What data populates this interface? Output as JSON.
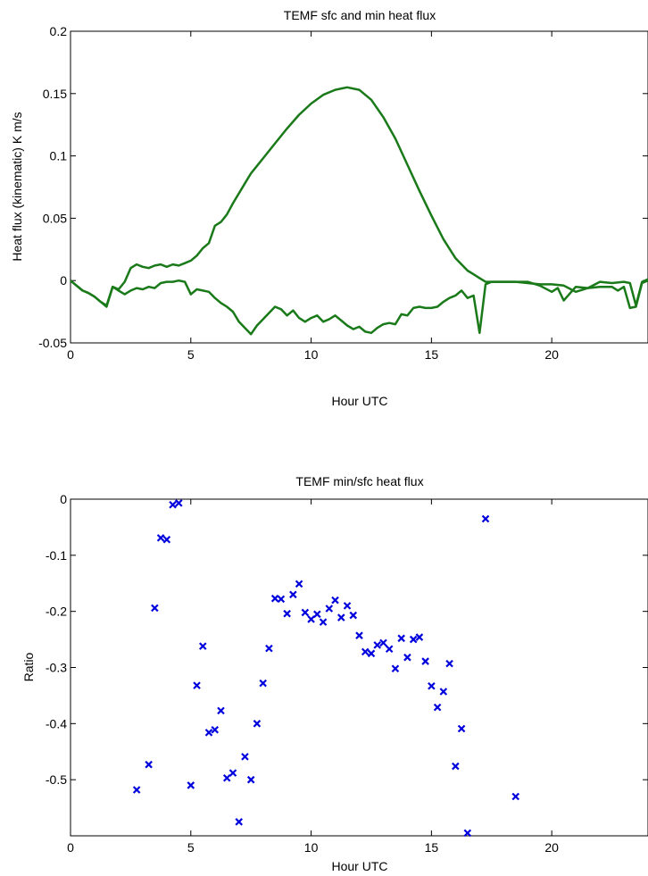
{
  "chart_data": [
    {
      "type": "line",
      "title": "TEMF sfc and min heat flux",
      "xlabel": "Hour UTC",
      "ylabel": "Heat flux (kinematic) K m/s",
      "xlim": [
        0,
        24
      ],
      "ylim": [
        -0.05,
        0.2
      ],
      "xticks": [
        0,
        5,
        10,
        15,
        20
      ],
      "yticks": [
        -0.05,
        0,
        0.05,
        0.1,
        0.15,
        0.2
      ],
      "grid": false,
      "colors": {
        "line": "#1a7a1a"
      },
      "series": [
        {
          "x": [
            0,
            0.25,
            0.5,
            0.75,
            1.0,
            1.25,
            1.5,
            1.75,
            2.0,
            2.25,
            2.5,
            2.75,
            3.0,
            3.25,
            3.5,
            3.75,
            4.0,
            4.25,
            4.5,
            4.75,
            5.0,
            5.25,
            5.5,
            5.75,
            6.0,
            6.25,
            6.5,
            6.75,
            7.0,
            7.25,
            7.5,
            7.75,
            8.0,
            8.5,
            9.0,
            9.5,
            10.0,
            10.5,
            11.0,
            11.5,
            12.0,
            12.5,
            13.0,
            13.5,
            14.0,
            14.5,
            15.0,
            15.5,
            16.0,
            16.5,
            16.75,
            17.0,
            17.25,
            17.5,
            18.0,
            18.5,
            19.0,
            19.5,
            20.0,
            20.5,
            21.0,
            21.5,
            22.0,
            22.5,
            23.0,
            23.25,
            23.5,
            23.75,
            24.0
          ],
          "values": [
            0.0,
            -0.004,
            -0.008,
            -0.01,
            -0.013,
            -0.017,
            -0.02,
            -0.005,
            -0.007,
            -0.001,
            0.01,
            0.013,
            0.011,
            0.01,
            0.012,
            0.013,
            0.011,
            0.013,
            0.012,
            0.014,
            0.016,
            0.02,
            0.026,
            0.03,
            0.044,
            0.047,
            0.053,
            0.062,
            0.07,
            0.078,
            0.086,
            0.092,
            0.098,
            0.11,
            0.122,
            0.133,
            0.142,
            0.149,
            0.153,
            0.155,
            0.153,
            0.145,
            0.131,
            0.114,
            0.093,
            0.072,
            0.052,
            0.033,
            0.018,
            0.008,
            0.005,
            0.002,
            -0.001,
            -0.001,
            -0.001,
            -0.001,
            -0.002,
            -0.003,
            -0.003,
            -0.004,
            -0.009,
            -0.006,
            -0.001,
            -0.002,
            -0.001,
            -0.002,
            -0.02,
            -0.001,
            0.001
          ]
        },
        {
          "x": [
            0,
            0.25,
            0.5,
            0.75,
            1.0,
            1.25,
            1.5,
            1.75,
            2.0,
            2.25,
            2.5,
            2.75,
            3.0,
            3.25,
            3.5,
            3.75,
            4.0,
            4.25,
            4.5,
            4.75,
            5.0,
            5.25,
            5.5,
            5.75,
            6.0,
            6.25,
            6.5,
            6.75,
            7.0,
            7.25,
            7.5,
            7.75,
            8.0,
            8.25,
            8.5,
            8.75,
            9.0,
            9.25,
            9.5,
            9.75,
            10.0,
            10.25,
            10.5,
            10.75,
            11.0,
            11.25,
            11.5,
            11.75,
            12.0,
            12.25,
            12.5,
            12.75,
            13.0,
            13.25,
            13.5,
            13.75,
            14.0,
            14.25,
            14.5,
            14.75,
            15.0,
            15.25,
            15.5,
            15.75,
            16.0,
            16.25,
            16.5,
            16.75,
            17.0,
            17.25,
            17.5,
            18.0,
            18.5,
            19.0,
            19.5,
            20.0,
            20.25,
            20.5,
            21.0,
            21.5,
            22.0,
            22.5,
            22.75,
            23.0,
            23.25,
            23.5,
            23.75,
            24.0
          ],
          "values": [
            0.0,
            -0.004,
            -0.008,
            -0.01,
            -0.013,
            -0.017,
            -0.021,
            -0.005,
            -0.008,
            -0.011,
            -0.008,
            -0.006,
            -0.007,
            -0.005,
            -0.006,
            -0.002,
            -0.001,
            -0.001,
            0.0,
            -0.001,
            -0.011,
            -0.007,
            -0.008,
            -0.009,
            -0.014,
            -0.018,
            -0.021,
            -0.025,
            -0.033,
            -0.038,
            -0.043,
            -0.036,
            -0.031,
            -0.026,
            -0.021,
            -0.023,
            -0.028,
            -0.024,
            -0.03,
            -0.033,
            -0.03,
            -0.028,
            -0.033,
            -0.031,
            -0.028,
            -0.032,
            -0.036,
            -0.039,
            -0.037,
            -0.041,
            -0.042,
            -0.038,
            -0.035,
            -0.034,
            -0.035,
            -0.027,
            -0.028,
            -0.022,
            -0.021,
            -0.022,
            -0.022,
            -0.021,
            -0.017,
            -0.014,
            -0.012,
            -0.008,
            -0.014,
            -0.012,
            -0.042,
            -0.003,
            -0.001,
            -0.001,
            -0.001,
            -0.001,
            -0.004,
            -0.009,
            -0.006,
            -0.016,
            -0.005,
            -0.006,
            -0.005,
            -0.005,
            -0.008,
            -0.005,
            -0.022,
            -0.021,
            -0.002,
            0.0
          ]
        }
      ]
    },
    {
      "type": "scatter",
      "title": "TEMF min/sfc heat flux",
      "xlabel": "Hour UTC",
      "ylabel": "Ratio",
      "xlim": [
        0,
        24
      ],
      "ylim": [
        -0.6,
        0
      ],
      "xticks": [
        0,
        5,
        10,
        15,
        20
      ],
      "yticks": [
        0,
        -0.1,
        -0.2,
        -0.3,
        -0.4,
        -0.5
      ],
      "grid": false,
      "marker": "x",
      "colors": {
        "marker": "#0000dd"
      },
      "x": [
        2.75,
        3.25,
        3.5,
        3.75,
        4.0,
        4.25,
        4.5,
        5.0,
        5.25,
        5.5,
        5.75,
        6.0,
        6.25,
        6.5,
        6.75,
        7.0,
        7.25,
        7.5,
        7.75,
        8.0,
        8.25,
        8.5,
        8.75,
        9.0,
        9.25,
        9.5,
        9.75,
        10.0,
        10.25,
        10.5,
        10.75,
        11.0,
        11.25,
        11.5,
        11.75,
        12.0,
        12.25,
        12.5,
        12.75,
        13.0,
        13.25,
        13.5,
        13.75,
        14.0,
        14.25,
        14.5,
        14.75,
        15.0,
        15.25,
        15.5,
        15.75,
        16.0,
        16.25,
        16.5,
        17.25,
        18.5
      ],
      "y": [
        -0.518,
        -0.473,
        -0.194,
        -0.069,
        -0.072,
        -0.01,
        -0.007,
        -0.51,
        -0.332,
        -0.262,
        -0.416,
        -0.411,
        -0.377,
        -0.497,
        -0.488,
        -0.575,
        -0.459,
        -0.5,
        -0.4,
        -0.328,
        -0.266,
        -0.177,
        -0.178,
        -0.204,
        -0.17,
        -0.151,
        -0.202,
        -0.214,
        -0.205,
        -0.219,
        -0.195,
        -0.18,
        -0.211,
        -0.19,
        -0.207,
        -0.243,
        -0.272,
        -0.275,
        -0.26,
        -0.256,
        -0.267,
        -0.302,
        -0.248,
        -0.282,
        -0.25,
        -0.246,
        -0.289,
        -0.333,
        -0.371,
        -0.343,
        -0.293,
        -0.476,
        -0.409,
        -0.595,
        -0.035,
        -0.53
      ]
    }
  ]
}
